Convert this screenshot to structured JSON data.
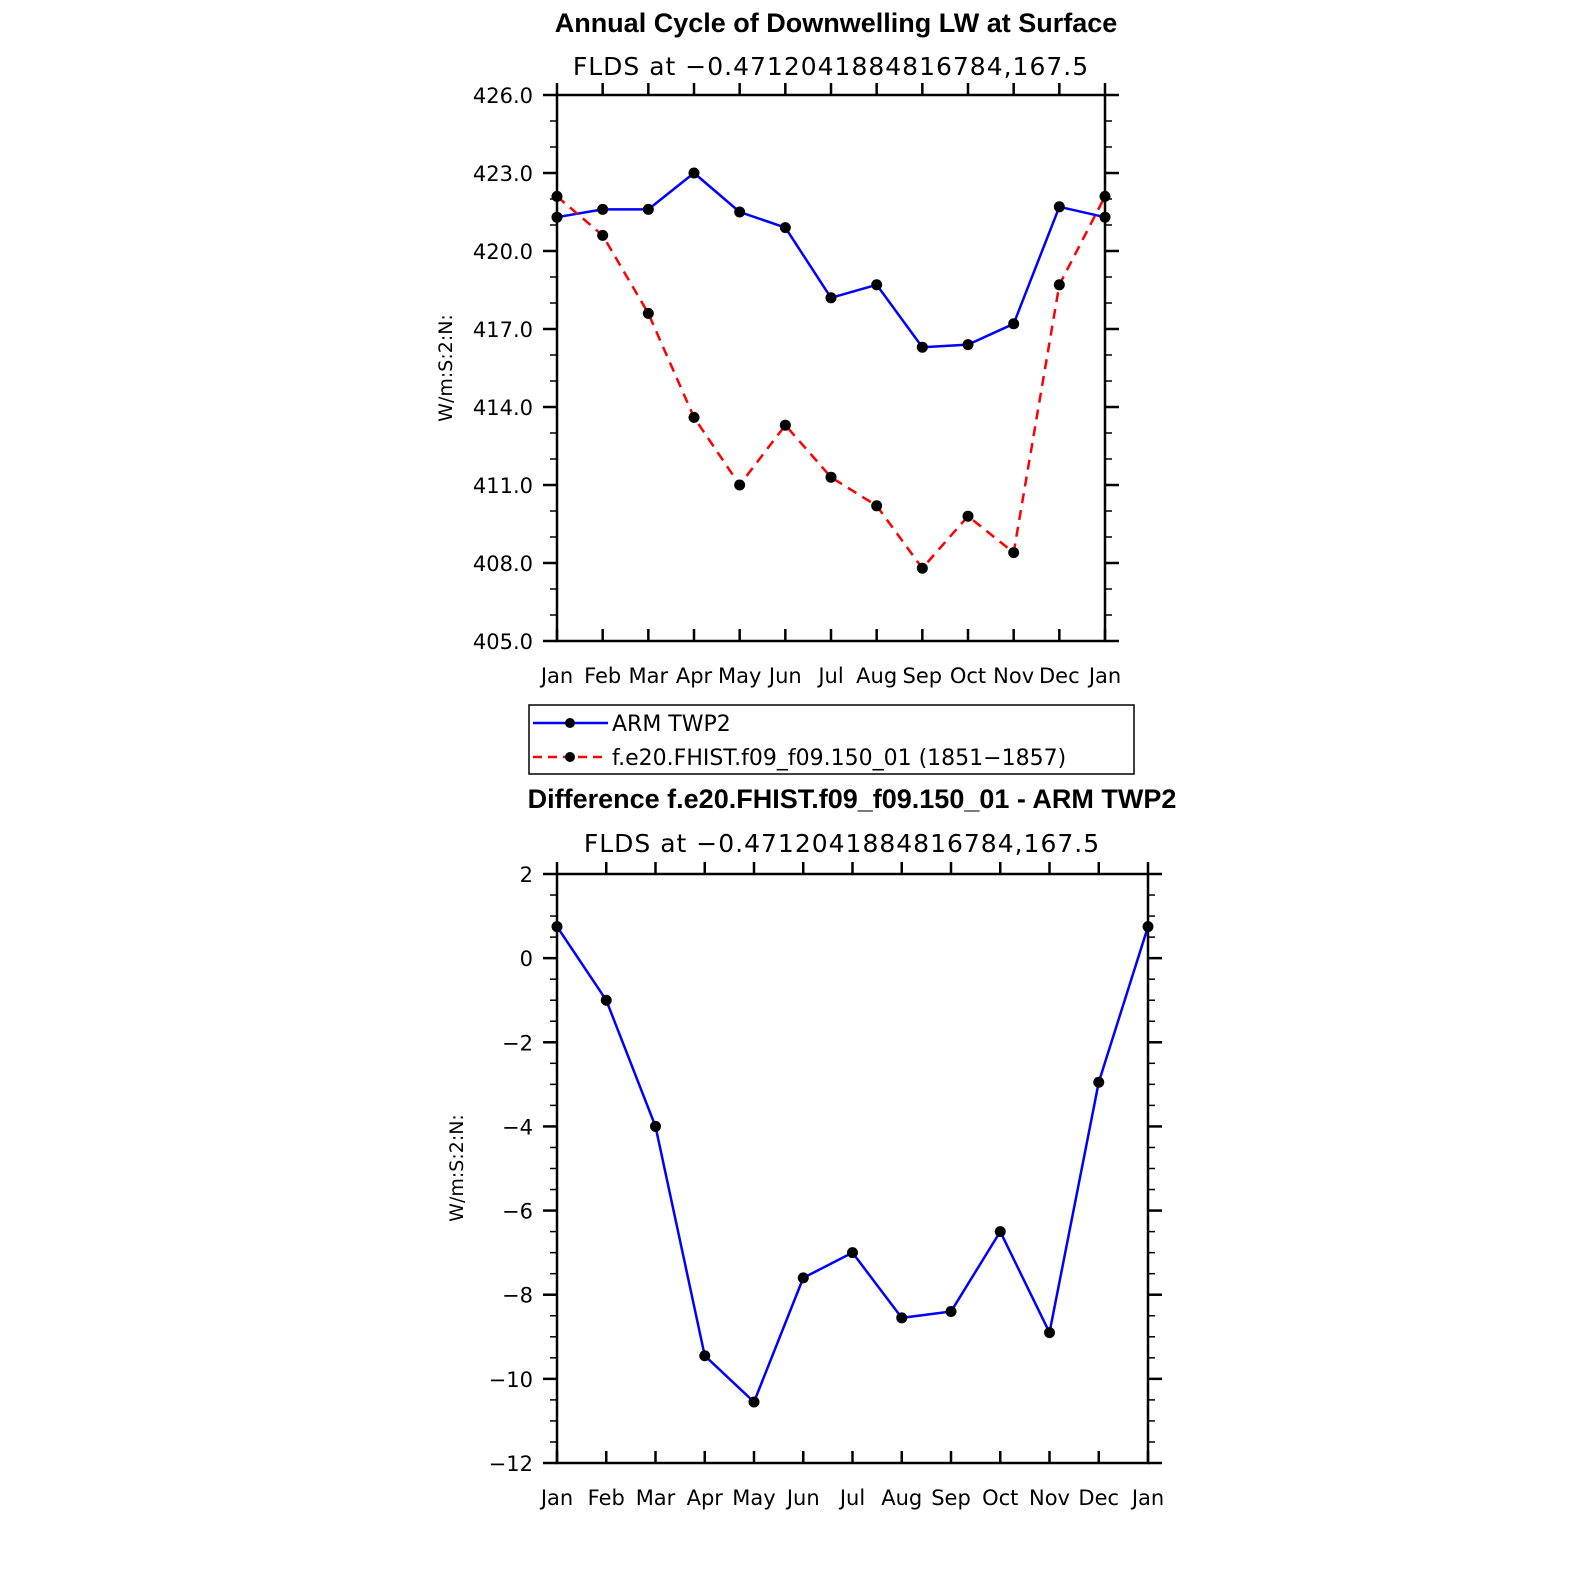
{
  "chart_data": [
    {
      "type": "line",
      "title": "Annual Cycle of Downwelling LW at Surface",
      "subtitle": "FLDS at −0.4712041884816784,167.5",
      "ylabel": "W/m:S:2:N:",
      "xlabel": "",
      "categories": [
        "Jan",
        "Feb",
        "Mar",
        "Apr",
        "May",
        "Jun",
        "Jul",
        "Aug",
        "Sep",
        "Oct",
        "Nov",
        "Dec",
        "Jan"
      ],
      "ylim": [
        405.0,
        426.0
      ],
      "yticks": [
        "405.0",
        "408.0",
        "411.0",
        "414.0",
        "417.0",
        "420.0",
        "423.0",
        "426.0"
      ],
      "grid": false,
      "legend_position": "below",
      "series": [
        {
          "name": "ARM TWP2",
          "color": "#0000ff",
          "dash": "solid",
          "values": [
            421.3,
            421.6,
            421.6,
            423.0,
            421.5,
            420.9,
            418.2,
            418.7,
            416.3,
            416.4,
            417.2,
            421.7,
            421.3
          ]
        },
        {
          "name": "f.e20.FHIST.f09_f09.150_01 (1851−1857)",
          "color": "#ff0000",
          "dash": "dashed",
          "values": [
            422.1,
            420.6,
            417.6,
            413.6,
            411.0,
            413.3,
            411.3,
            410.2,
            407.8,
            409.8,
            408.4,
            418.7,
            422.1
          ]
        }
      ]
    },
    {
      "type": "line",
      "title": "Difference f.e20.FHIST.f09_f09.150_01 - ARM TWP2",
      "subtitle": "FLDS at −0.4712041884816784,167.5",
      "ylabel": "W/m:S:2:N:",
      "xlabel": "",
      "categories": [
        "Jan",
        "Feb",
        "Mar",
        "Apr",
        "May",
        "Jun",
        "Jul",
        "Aug",
        "Sep",
        "Oct",
        "Nov",
        "Dec",
        "Jan"
      ],
      "ylim": [
        -12,
        2
      ],
      "yticks": [
        "−12",
        "−10",
        "−8",
        "−6",
        "−4",
        "−2",
        "0",
        "2"
      ],
      "grid": false,
      "series": [
        {
          "color": "#0000ff",
          "dash": "solid",
          "values": [
            0.75,
            -1.0,
            -4.0,
            -9.45,
            -10.55,
            -7.6,
            -7.0,
            -8.55,
            -8.4,
            -6.5,
            -8.9,
            -2.95,
            0.75
          ]
        }
      ]
    }
  ]
}
